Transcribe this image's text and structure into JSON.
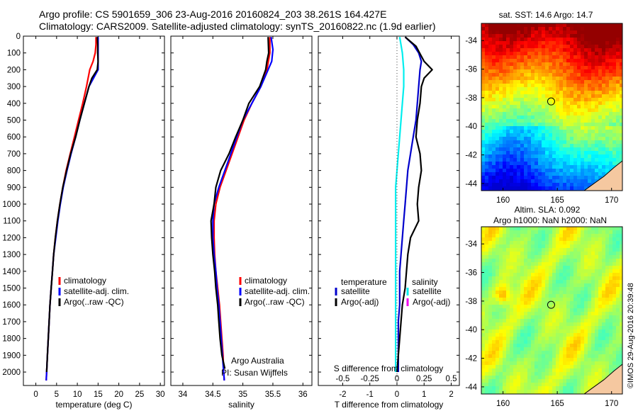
{
  "header": {
    "line1": "Argo profile: CS 5901659_306 23-Aug-2016 20160824_203 38.261S 164.427E",
    "line2": "Climatology: CARS2009. Satellite-adjusted climatology: synTS_20160822.nc (1.9d earlier)"
  },
  "chart_data": [
    {
      "type": "line",
      "panel": "temperature",
      "xlabel": "temperature (deg C)",
      "ylabel": "",
      "xlim": [
        -3,
        31
      ],
      "ylim": [
        2080,
        0
      ],
      "xticks": [
        "0",
        "5",
        "10",
        "15",
        "20",
        "25",
        "30"
      ],
      "yticks": [
        "0",
        "100",
        "200",
        "300",
        "400",
        "500",
        "600",
        "700",
        "800",
        "900",
        "1000",
        "1100",
        "1200",
        "1300",
        "1400",
        "1500",
        "1600",
        "1700",
        "1800",
        "1900",
        "2000"
      ],
      "legend": [
        "climatology",
        "satellite-adj. clim.",
        "Argo(..raw -QC)"
      ],
      "legend_position": "lower-center",
      "series": [
        {
          "color": "#ff0000",
          "points": [
            [
              14.5,
              5
            ],
            [
              14.5,
              50
            ],
            [
              14.3,
              100
            ],
            [
              13.8,
              150
            ],
            [
              13.0,
              200
            ],
            [
              12.2,
              300
            ],
            [
              11.3,
              400
            ],
            [
              10.3,
              500
            ],
            [
              9.3,
              600
            ],
            [
              8.3,
              700
            ],
            [
              7.3,
              800
            ],
            [
              6.5,
              900
            ],
            [
              5.8,
              1000
            ],
            [
              5.2,
              1100
            ],
            [
              4.7,
              1200
            ],
            [
              4.3,
              1300
            ],
            [
              4.0,
              1400
            ],
            [
              3.7,
              1500
            ],
            [
              3.4,
              1600
            ],
            [
              3.2,
              1700
            ],
            [
              3.0,
              1800
            ],
            [
              2.8,
              1900
            ],
            [
              2.6,
              2000
            ],
            [
              2.5,
              2050
            ]
          ]
        },
        {
          "color": "#0000ff",
          "points": [
            [
              15.0,
              5
            ],
            [
              15.0,
              50
            ],
            [
              15.0,
              100
            ],
            [
              15.0,
              150
            ],
            [
              15.0,
              200
            ],
            [
              12.8,
              300
            ],
            [
              11.7,
              400
            ],
            [
              10.6,
              500
            ],
            [
              9.6,
              600
            ],
            [
              8.5,
              700
            ],
            [
              7.5,
              800
            ],
            [
              6.6,
              900
            ],
            [
              5.9,
              1000
            ],
            [
              5.3,
              1100
            ],
            [
              4.8,
              1200
            ],
            [
              4.3,
              1300
            ],
            [
              4.0,
              1400
            ],
            [
              3.7,
              1500
            ],
            [
              3.4,
              1600
            ],
            [
              3.2,
              1700
            ],
            [
              3.0,
              1800
            ],
            [
              2.8,
              1900
            ],
            [
              2.6,
              2000
            ],
            [
              2.5,
              2050
            ]
          ]
        },
        {
          "color": "#000000",
          "points": [
            [
              14.8,
              5
            ],
            [
              14.9,
              50
            ],
            [
              14.9,
              100
            ],
            [
              15.0,
              150
            ],
            [
              14.8,
              200
            ],
            [
              13.5,
              250
            ],
            [
              12.8,
              300
            ],
            [
              11.7,
              400
            ],
            [
              10.6,
              500
            ],
            [
              9.6,
              600
            ],
            [
              8.4,
              700
            ],
            [
              7.4,
              800
            ],
            [
              6.5,
              900
            ],
            [
              5.8,
              1000
            ],
            [
              5.2,
              1100
            ],
            [
              4.7,
              1200
            ],
            [
              4.3,
              1300
            ],
            [
              4.0,
              1400
            ],
            [
              3.7,
              1500
            ],
            [
              3.4,
              1600
            ],
            [
              3.2,
              1700
            ],
            [
              3.0,
              1800
            ],
            [
              2.8,
              1900
            ],
            [
              2.6,
              2000
            ]
          ]
        }
      ]
    },
    {
      "type": "line",
      "panel": "salinity",
      "xlabel": "salinity",
      "xlim": [
        33.8,
        36.15
      ],
      "ylim": [
        2080,
        0
      ],
      "xticks": [
        "34",
        "34.5",
        "35",
        "35.5",
        "36"
      ],
      "legend": [
        "climatology",
        "satellite-adj. clim.",
        "Argo(..raw -QC)"
      ],
      "legend_position": "lower-center",
      "annotation": [
        "Argo Australia",
        "PI: Susan Wijffels"
      ],
      "series": [
        {
          "color": "#ff0000",
          "points": [
            [
              35.45,
              5
            ],
            [
              35.45,
              100
            ],
            [
              35.4,
              200
            ],
            [
              35.3,
              300
            ],
            [
              35.15,
              400
            ],
            [
              35.02,
              500
            ],
            [
              34.92,
              600
            ],
            [
              34.82,
              700
            ],
            [
              34.72,
              800
            ],
            [
              34.62,
              900
            ],
            [
              34.55,
              1000
            ],
            [
              34.52,
              1100
            ],
            [
              34.52,
              1200
            ],
            [
              34.53,
              1300
            ],
            [
              34.55,
              1400
            ],
            [
              34.58,
              1500
            ],
            [
              34.61,
              1600
            ],
            [
              34.63,
              1700
            ],
            [
              34.65,
              1800
            ],
            [
              34.67,
              1900
            ],
            [
              34.68,
              2000
            ],
            [
              34.69,
              2050
            ]
          ]
        },
        {
          "color": "#0000ff",
          "points": [
            [
              35.47,
              5
            ],
            [
              35.5,
              80
            ],
            [
              35.48,
              150
            ],
            [
              35.42,
              200
            ],
            [
              35.3,
              300
            ],
            [
              35.15,
              400
            ],
            [
              35.0,
              500
            ],
            [
              34.9,
              600
            ],
            [
              34.8,
              700
            ],
            [
              34.7,
              800
            ],
            [
              34.6,
              900
            ],
            [
              34.52,
              1000
            ],
            [
              34.5,
              1100
            ],
            [
              34.5,
              1200
            ],
            [
              34.52,
              1300
            ],
            [
              34.55,
              1400
            ],
            [
              34.57,
              1500
            ],
            [
              34.6,
              1600
            ],
            [
              34.62,
              1700
            ],
            [
              34.64,
              1800
            ],
            [
              34.66,
              1900
            ],
            [
              34.68,
              2000
            ],
            [
              34.69,
              2050
            ]
          ]
        },
        {
          "color": "#000000",
          "points": [
            [
              35.42,
              5
            ],
            [
              35.43,
              100
            ],
            [
              35.4,
              150
            ],
            [
              35.38,
              200
            ],
            [
              35.28,
              300
            ],
            [
              35.1,
              400
            ],
            [
              35.0,
              500
            ],
            [
              34.88,
              600
            ],
            [
              34.77,
              700
            ],
            [
              34.63,
              800
            ],
            [
              34.55,
              900
            ],
            [
              34.52,
              1000
            ],
            [
              34.47,
              1100
            ],
            [
              34.48,
              1200
            ],
            [
              34.5,
              1300
            ],
            [
              34.53,
              1400
            ],
            [
              34.55,
              1500
            ],
            [
              34.58,
              1600
            ],
            [
              34.6,
              1700
            ],
            [
              34.62,
              1800
            ],
            [
              34.65,
              1900
            ],
            [
              34.7,
              1980
            ]
          ]
        }
      ]
    },
    {
      "type": "line",
      "panel": "difference",
      "xlabel": "T difference from climatology",
      "xlabel_top": "S difference from climatology",
      "xlim": [
        -2.9,
        2.3
      ],
      "xticks": [
        "-2",
        "-1",
        "0",
        "1",
        "2"
      ],
      "xticks_top": [
        "-0.5",
        "-0.25",
        "0",
        "0.25",
        "0.5"
      ],
      "ylim": [
        2080,
        0
      ],
      "legend_temperature": {
        "title": "temperature",
        "items": [
          "satellite",
          "Argo(-adj)"
        ]
      },
      "legend_salinity": {
        "title": "salinity",
        "items": [
          "satellite",
          "Argo(-adj)"
        ]
      },
      "legend_position": "lower-center",
      "series": [
        {
          "name": "satellite",
          "color": "#00eeee",
          "points": [
            [
              0.1,
              5
            ],
            [
              0.2,
              100
            ],
            [
              0.25,
              200
            ],
            [
              0.25,
              300
            ],
            [
              0.2,
              400
            ],
            [
              0.15,
              500
            ],
            [
              0.1,
              600
            ],
            [
              0.05,
              700
            ],
            [
              0.0,
              800
            ],
            [
              -0.05,
              900
            ],
            [
              -0.05,
              1000
            ],
            [
              -0.05,
              1100
            ],
            [
              -0.05,
              1200
            ],
            [
              -0.05,
              1300
            ],
            [
              -0.05,
              1400
            ],
            [
              -0.05,
              1500
            ],
            [
              -0.05,
              1600
            ],
            [
              -0.05,
              1700
            ],
            [
              -0.05,
              1800
            ],
            [
              -0.05,
              1900
            ],
            [
              -0.05,
              2000
            ]
          ]
        },
        {
          "name": "satellite",
          "color": "#0000cc",
          "points": [
            [
              0.3,
              5
            ],
            [
              0.6,
              50
            ],
            [
              0.8,
              100
            ],
            [
              0.9,
              150
            ],
            [
              0.85,
              200
            ],
            [
              0.8,
              300
            ],
            [
              0.75,
              400
            ],
            [
              0.7,
              500
            ],
            [
              0.6,
              600
            ],
            [
              0.5,
              700
            ],
            [
              0.4,
              800
            ],
            [
              0.35,
              900
            ],
            [
              0.3,
              1000
            ],
            [
              0.25,
              1100
            ],
            [
              0.2,
              1200
            ],
            [
              0.15,
              1300
            ],
            [
              0.1,
              1400
            ],
            [
              0.1,
              1500
            ],
            [
              0.1,
              1600
            ],
            [
              0.05,
              1700
            ],
            [
              0.05,
              1800
            ],
            [
              0.05,
              1900
            ],
            [
              0.05,
              2000
            ]
          ]
        },
        {
          "name": "Argo(-adj)",
          "color": "#000000",
          "points": [
            [
              0.3,
              5
            ],
            [
              0.7,
              60
            ],
            [
              1.0,
              150
            ],
            [
              1.3,
              200
            ],
            [
              1.0,
              250
            ],
            [
              0.9,
              300
            ],
            [
              0.85,
              400
            ],
            [
              0.75,
              500
            ],
            [
              0.7,
              600
            ],
            [
              0.85,
              700
            ],
            [
              0.9,
              800
            ],
            [
              0.8,
              900
            ],
            [
              0.75,
              1000
            ],
            [
              0.8,
              1100
            ],
            [
              0.5,
              1200
            ],
            [
              0.4,
              1300
            ],
            [
              0.35,
              1400
            ],
            [
              0.3,
              1500
            ],
            [
              0.2,
              1600
            ],
            [
              0.15,
              1700
            ],
            [
              0.1,
              1800
            ],
            [
              0.05,
              1900
            ],
            [
              0.0,
              2000
            ]
          ]
        }
      ]
    },
    {
      "type": "heatmap",
      "panel": "sst-map",
      "title": "sat. SST: 14.6 Argo: 14.7",
      "xticks": [
        "160",
        "165",
        "170"
      ],
      "yticks": [
        "-34",
        "-36",
        "-38",
        "-40",
        "-42",
        "-44"
      ],
      "xlim": [
        158,
        171
      ],
      "ylim": [
        -44.5,
        -32.8
      ],
      "marker": [
        164.43,
        -38.26
      ]
    },
    {
      "type": "heatmap",
      "panel": "sla-map",
      "title": "Altim. SLA: 0.092",
      "subtitle": "Argo h1000: NaN h2000: NaN",
      "xticks": [
        "160",
        "165",
        "170"
      ],
      "yticks": [
        "-34",
        "-36",
        "-38",
        "-40",
        "-42",
        "-44"
      ],
      "xlim": [
        158,
        171
      ],
      "ylim": [
        -44.5,
        -32.8
      ],
      "marker": [
        164.43,
        -38.26
      ]
    }
  ],
  "side_text": "©IMOS 29-Aug-2016 20:39:48"
}
